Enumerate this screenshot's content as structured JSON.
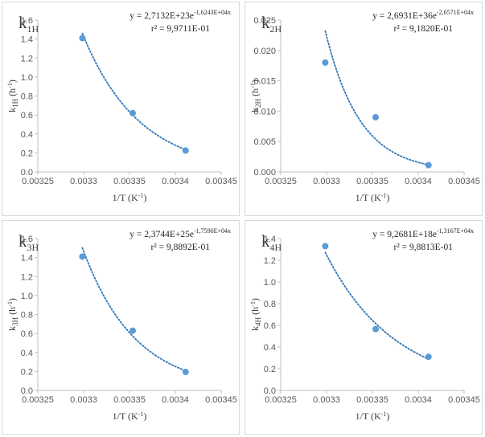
{
  "chart_data": [
    {
      "type": "scatter",
      "title": {
        "main": "k",
        "sub": "1H"
      },
      "equation": {
        "prefix": "y = 2,7132E+23e",
        "exponent": "-1,6243E+04x"
      },
      "r2": "r² = 9,9711E-01",
      "ylabel": {
        "pre": "k",
        "sub": "1H",
        "post": " (h",
        "sup": "-1",
        "end": ")"
      },
      "xlabel": {
        "pre": "1/T (K",
        "sup": "-1",
        "end": ")"
      },
      "xlim": [
        0.00325,
        0.00345
      ],
      "ylim": [
        0,
        1.6
      ],
      "xticks": [
        0.00325,
        0.0033,
        0.00335,
        0.0034,
        0.00345
      ],
      "xtick_labels": [
        "0.00325",
        "0.0033",
        "0.00335",
        "0.0034",
        "0.00345"
      ],
      "yticks": [
        0,
        0.2,
        0.4,
        0.6,
        0.8,
        1,
        1.2,
        1.4,
        1.6
      ],
      "ytick_labels": [
        "0.0",
        "0.2",
        "0.4",
        "0.6",
        "0.8",
        "1.0",
        "1.2",
        "1.4",
        "1.6"
      ],
      "x": [
        0.0032986,
        0.0033535,
        0.0034112
      ],
      "y": [
        1.41,
        0.62,
        0.225
      ],
      "trend": {
        "a": 2.7132e+23,
        "b": -16243,
        "x0": 0.0032986,
        "x1": 0.0034112
      },
      "grid": false,
      "marker_color": "#5b9bd5",
      "trend_color": "#2e75b6"
    },
    {
      "type": "scatter",
      "title": {
        "main": "k",
        "sub": "2H"
      },
      "equation": {
        "prefix": "y = 2,6931E+36e",
        "exponent": "-2,6571E+04x"
      },
      "r2": "r² = 9,1820E-01",
      "ylabel": {
        "pre": "k",
        "sub": "2H",
        "post": " (h",
        "sup": "-1",
        "end": ")"
      },
      "xlabel": {
        "pre": "1/T (K",
        "sup": "-1",
        "end": ")"
      },
      "xlim": [
        0.00325,
        0.00345
      ],
      "ylim": [
        0,
        0.025
      ],
      "xticks": [
        0.00325,
        0.0033,
        0.00335,
        0.0034,
        0.00345
      ],
      "xtick_labels": [
        "0.00325",
        "0.0033",
        "0.00335",
        "0.0034",
        "0.00345"
      ],
      "yticks": [
        0,
        0.005,
        0.01,
        0.015,
        0.02,
        0.025
      ],
      "ytick_labels": [
        "0.000",
        "0.005",
        "0.010",
        "0.015",
        "0.020",
        "0.025"
      ],
      "x": [
        0.0032986,
        0.0033535,
        0.0034112
      ],
      "y": [
        0.018,
        0.009,
        0.0011
      ],
      "trend": {
        "a": 2.6931e+36,
        "b": -26571,
        "x0": 0.0032986,
        "x1": 0.0034112
      },
      "grid": false,
      "marker_color": "#5b9bd5",
      "trend_color": "#2e75b6"
    },
    {
      "type": "scatter",
      "title": {
        "main": "k",
        "sub": "3H"
      },
      "equation": {
        "prefix": "y = 2,3744E+25e",
        "exponent": "-1,7590E+04x"
      },
      "r2": "r² = 9,8892E-01",
      "ylabel": {
        "pre": "k",
        "sub": "3H",
        "post": " (h",
        "sup": "-1",
        "end": ")"
      },
      "xlabel": {
        "pre": "1/T (K",
        "sup": "-1",
        "end": ")"
      },
      "xlim": [
        0.00325,
        0.00345
      ],
      "ylim": [
        0,
        1.6
      ],
      "xticks": [
        0.00325,
        0.0033,
        0.00335,
        0.0034,
        0.00345
      ],
      "xtick_labels": [
        "0.00325",
        "0.0033",
        "0.00335",
        "0.0034",
        "0.00345"
      ],
      "yticks": [
        0,
        0.2,
        0.4,
        0.6,
        0.8,
        1,
        1.2,
        1.4,
        1.6
      ],
      "ytick_labels": [
        "0.0",
        "0.2",
        "0.4",
        "0.6",
        "0.8",
        "1.0",
        "1.2",
        "1.4",
        "1.6"
      ],
      "x": [
        0.0032986,
        0.0033535,
        0.0034112
      ],
      "y": [
        1.41,
        0.63,
        0.195
      ],
      "trend": {
        "a": 2.3744e+25,
        "b": -17590,
        "x0": 0.0032986,
        "x1": 0.0034112
      },
      "grid": false,
      "marker_color": "#5b9bd5",
      "trend_color": "#2e75b6"
    },
    {
      "type": "scatter",
      "title": {
        "main": "k",
        "sub": "4H"
      },
      "equation": {
        "prefix": "y = 9,2681E+18e",
        "exponent": "-1,3167E+04x"
      },
      "r2": "r² = 9,8813E-01",
      "ylabel": {
        "pre": "k",
        "sub": "4H",
        "post": " (h",
        "sup": "-1",
        "end": ")"
      },
      "xlabel": {
        "pre": "1/T (K",
        "sup": "-1",
        "end": ")"
      },
      "xlim": [
        0.00325,
        0.00345
      ],
      "ylim": [
        0,
        1.4
      ],
      "xticks": [
        0.00325,
        0.0033,
        0.00335,
        0.0034,
        0.00345
      ],
      "xtick_labels": [
        "0.00325",
        "0.0033",
        "0.00335",
        "0.0034",
        "0.00345"
      ],
      "yticks": [
        0,
        0.2,
        0.4,
        0.6,
        0.8,
        1,
        1.2,
        1.4
      ],
      "ytick_labels": [
        "0.0",
        "0.2",
        "0.4",
        "0.6",
        "0.8",
        "1.0",
        "1.2",
        "1.4"
      ],
      "x": [
        0.0032986,
        0.0033535,
        0.0034112
      ],
      "y": [
        1.33,
        0.565,
        0.31
      ],
      "trend": {
        "a": 9.2681e+18,
        "b": -13167,
        "x0": 0.0032986,
        "x1": 0.0034112
      },
      "grid": false,
      "marker_color": "#5b9bd5",
      "trend_color": "#2e75b6"
    }
  ]
}
